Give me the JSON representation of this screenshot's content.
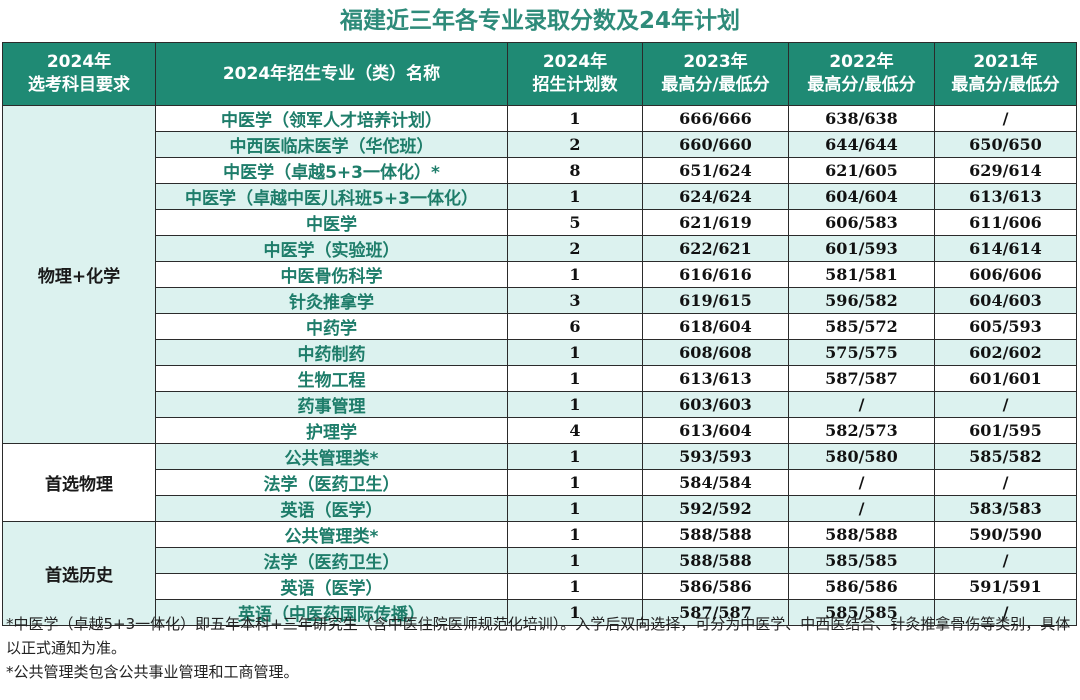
{
  "title": "福建近三年各专业录取分数及24年计划",
  "header": {
    "col1": [
      "2024年",
      "选考科目要求"
    ],
    "col2": "2024年招生专业（类）名称",
    "col3": [
      "2024年",
      "招生计划数"
    ],
    "col4": [
      "2023年",
      "最高分/最低分"
    ],
    "col5": [
      "2022年",
      "最高分/最低分"
    ],
    "col6": [
      "2021年",
      "最高分/最低分"
    ]
  },
  "groups": [
    {
      "label": "物理+化学",
      "rows": [
        {
          "major": "中医学（领军人才培养计划）",
          "plan": "1",
          "s2023": "666/666",
          "s2022": "638/638",
          "s2021": "/"
        },
        {
          "major": "中西医临床医学（华佗班）",
          "plan": "2",
          "s2023": "660/660",
          "s2022": "644/644",
          "s2021": "650/650"
        },
        {
          "major": "中医学（卓越5+3一体化）*",
          "plan": "8",
          "s2023": "651/624",
          "s2022": "621/605",
          "s2021": "629/614"
        },
        {
          "major": "中医学（卓越中医儿科班5+3一体化）",
          "plan": "1",
          "s2023": "624/624",
          "s2022": "604/604",
          "s2021": "613/613"
        },
        {
          "major": "中医学",
          "plan": "5",
          "s2023": "621/619",
          "s2022": "606/583",
          "s2021": "611/606"
        },
        {
          "major": "中医学（实验班）",
          "plan": "2",
          "s2023": "622/621",
          "s2022": "601/593",
          "s2021": "614/614"
        },
        {
          "major": "中医骨伤科学",
          "plan": "1",
          "s2023": "616/616",
          "s2022": "581/581",
          "s2021": "606/606"
        },
        {
          "major": "针灸推拿学",
          "plan": "3",
          "s2023": "619/615",
          "s2022": "596/582",
          "s2021": "604/603"
        },
        {
          "major": "中药学",
          "plan": "6",
          "s2023": "618/604",
          "s2022": "585/572",
          "s2021": "605/593"
        },
        {
          "major": "中药制药",
          "plan": "1",
          "s2023": "608/608",
          "s2022": "575/575",
          "s2021": "602/602"
        },
        {
          "major": "生物工程",
          "plan": "1",
          "s2023": "613/613",
          "s2022": "587/587",
          "s2021": "601/601"
        },
        {
          "major": "药事管理",
          "plan": "1",
          "s2023": "603/603",
          "s2022": "/",
          "s2021": "/"
        },
        {
          "major": "护理学",
          "plan": "4",
          "s2023": "613/604",
          "s2022": "582/573",
          "s2021": "601/595"
        }
      ]
    },
    {
      "label": "首选物理",
      "rows": [
        {
          "major": "公共管理类*",
          "plan": "1",
          "s2023": "593/593",
          "s2022": "580/580",
          "s2021": "585/582"
        },
        {
          "major": "法学（医药卫生）",
          "plan": "1",
          "s2023": "584/584",
          "s2022": "/",
          "s2021": "/"
        },
        {
          "major": "英语（医学）",
          "plan": "1",
          "s2023": "592/592",
          "s2022": "/",
          "s2021": "583/583"
        }
      ]
    },
    {
      "label": "首选历史",
      "rows": [
        {
          "major": "公共管理类*",
          "plan": "1",
          "s2023": "588/588",
          "s2022": "588/588",
          "s2021": "590/590"
        },
        {
          "major": "法学（医药卫生）",
          "plan": "1",
          "s2023": "588/588",
          "s2022": "585/585",
          "s2021": "/"
        },
        {
          "major": "英语（医学）",
          "plan": "1",
          "s2023": "586/586",
          "s2022": "586/586",
          "s2021": "591/591"
        },
        {
          "major": "英语（中医药国际传播）",
          "plan": "1",
          "s2023": "587/587",
          "s2022": "585/585",
          "s2021": "/"
        }
      ]
    }
  ],
  "notes": [
    "*中医学（卓越5+3一体化）即五年本科+三年研究生（含中医住院医师规范化培训）。入学后双向选择，可分为中医学、中西医结合、针灸推拿骨伤等类别，具体以正式通知为准。",
    "*公共管理类包含公共事业管理和工商管理。"
  ]
}
